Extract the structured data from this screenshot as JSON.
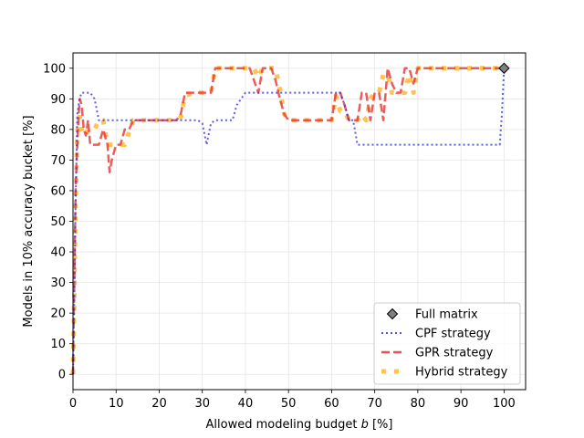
{
  "chart_data": {
    "type": "line",
    "xlabel_prefix": "Allowed modeling budget ",
    "xlabel_var": "b",
    "xlabel_suffix": " [%]",
    "ylabel": "Models in 10% accuracy bucket [%]",
    "xlim": [
      0,
      105
    ],
    "ylim": [
      -5,
      105
    ],
    "xticks": [
      0,
      10,
      20,
      30,
      40,
      50,
      60,
      70,
      80,
      90,
      100
    ],
    "yticks": [
      0,
      10,
      20,
      30,
      40,
      50,
      60,
      70,
      80,
      90,
      100
    ],
    "grid": true,
    "legend_position": "lower-right",
    "full_matrix": {
      "name": "Full matrix",
      "x": 100,
      "y": 100,
      "color": "#808080"
    },
    "series": [
      {
        "name": "CPF strategy",
        "color": "#3333e6",
        "style": "dotted",
        "x": [
          0,
          0.3,
          0.6,
          1.0,
          1.5,
          2,
          3,
          4,
          5,
          6,
          8,
          10,
          12,
          15,
          20,
          25,
          29,
          30,
          31,
          32,
          33,
          35,
          37,
          38,
          40,
          45,
          50,
          55,
          60,
          62,
          63,
          64,
          65,
          66,
          70,
          80,
          90,
          99,
          99.5,
          100
        ],
        "y": [
          0,
          25,
          55,
          85,
          90,
          92,
          92,
          92,
          90,
          83,
          83,
          83,
          83,
          83,
          83,
          83,
          83,
          82,
          75,
          82,
          83,
          83,
          83,
          88,
          92,
          92,
          92,
          92,
          92,
          92,
          88,
          83,
          83,
          75,
          75,
          75,
          75,
          75,
          85,
          100
        ]
      },
      {
        "name": "GPR strategy",
        "color": "#e63333",
        "style": "dashed",
        "x": [
          0,
          0.3,
          0.6,
          1.0,
          1.3,
          1.6,
          2,
          2.5,
          3,
          3.5,
          4,
          5,
          6,
          7,
          8,
          8.5,
          9,
          10,
          11,
          12,
          13,
          14,
          16,
          18,
          20,
          22,
          24,
          25,
          26,
          28,
          30,
          32,
          33,
          34,
          36,
          38,
          40,
          41,
          42,
          43,
          44,
          45,
          46,
          47,
          48,
          49,
          50,
          52,
          54,
          56,
          58,
          60,
          61,
          62,
          63,
          64,
          65,
          66,
          67,
          68,
          69,
          70,
          71,
          72,
          73,
          74,
          75,
          76,
          77,
          78,
          79,
          80,
          82,
          85,
          90,
          95,
          100
        ],
        "y": [
          0,
          30,
          60,
          75,
          85,
          90,
          88,
          80,
          78,
          83,
          75,
          75,
          75,
          80,
          75,
          66,
          70,
          75,
          75,
          80,
          80,
          83,
          83,
          83,
          83,
          83,
          83,
          85,
          92,
          92,
          92,
          92,
          100,
          100,
          100,
          100,
          100,
          100,
          96,
          92,
          100,
          100,
          100,
          96,
          90,
          85,
          83,
          83,
          83,
          83,
          83,
          83,
          92,
          92,
          88,
          83,
          83,
          83,
          92,
          92,
          83,
          92,
          92,
          83,
          100,
          95,
          92,
          92,
          100,
          100,
          95,
          100,
          100,
          100,
          100,
          100,
          100
        ]
      },
      {
        "name": "Hybrid strategy",
        "color": "#ffb833",
        "style": "square-dashed",
        "x": [
          0,
          0.3,
          0.6,
          1.0,
          1.3,
          1.6,
          2,
          2.5,
          3,
          3.5,
          4,
          5,
          6,
          7,
          8,
          9,
          10,
          12,
          13,
          14,
          16,
          18,
          20,
          22,
          24,
          25,
          26,
          28,
          30,
          32,
          33,
          34,
          36,
          38,
          40,
          42,
          43,
          44,
          45,
          46,
          47,
          48,
          49,
          50,
          52,
          54,
          56,
          58,
          60,
          61,
          62,
          63,
          64,
          65,
          66,
          67,
          68,
          69,
          70,
          71,
          72,
          73,
          74,
          75,
          76,
          77,
          78,
          79,
          80,
          82,
          85,
          90,
          95,
          100
        ],
        "y": [
          0,
          25,
          55,
          78,
          84,
          84,
          80,
          78,
          78,
          80,
          80,
          80,
          83,
          83,
          75,
          75,
          75,
          75,
          79,
          83,
          83,
          83,
          83,
          83,
          83,
          84,
          91,
          92,
          92,
          92,
          100,
          100,
          100,
          100,
          100,
          100,
          97,
          100,
          100,
          100,
          100,
          93,
          85,
          83,
          83,
          83,
          83,
          83,
          83,
          91,
          86,
          86,
          83,
          83,
          83,
          85,
          83,
          90,
          92,
          92,
          98,
          98,
          92,
          92,
          92,
          92,
          98,
          92,
          100,
          100,
          100,
          100,
          100,
          100
        ]
      }
    ]
  }
}
